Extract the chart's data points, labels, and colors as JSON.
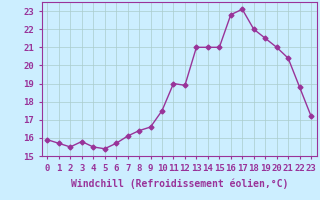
{
  "x": [
    0,
    1,
    2,
    3,
    4,
    5,
    6,
    7,
    8,
    9,
    10,
    11,
    12,
    13,
    14,
    15,
    16,
    17,
    18,
    19,
    20,
    21,
    22,
    23
  ],
  "y": [
    15.9,
    15.7,
    15.5,
    15.8,
    15.5,
    15.4,
    15.7,
    16.1,
    16.4,
    16.6,
    17.5,
    19.0,
    18.9,
    21.0,
    21.0,
    21.0,
    22.8,
    23.1,
    22.0,
    21.5,
    21.0,
    20.4,
    18.8,
    17.2
  ],
  "line_color": "#993399",
  "marker": "D",
  "marker_size": 2.5,
  "background_color": "#cceeff",
  "grid_color": "#aacccc",
  "xlabel": "Windchill (Refroidissement éolien,°C)",
  "xlim": [
    -0.5,
    23.5
  ],
  "ylim": [
    15,
    23.5
  ],
  "yticks": [
    15,
    16,
    17,
    18,
    19,
    20,
    21,
    22,
    23
  ],
  "xticks": [
    0,
    1,
    2,
    3,
    4,
    5,
    6,
    7,
    8,
    9,
    10,
    11,
    12,
    13,
    14,
    15,
    16,
    17,
    18,
    19,
    20,
    21,
    22,
    23
  ],
  "tick_color": "#993399",
  "label_color": "#993399",
  "axis_color": "#993399",
  "label_fontsize": 6.5,
  "xlabel_fontsize": 7
}
